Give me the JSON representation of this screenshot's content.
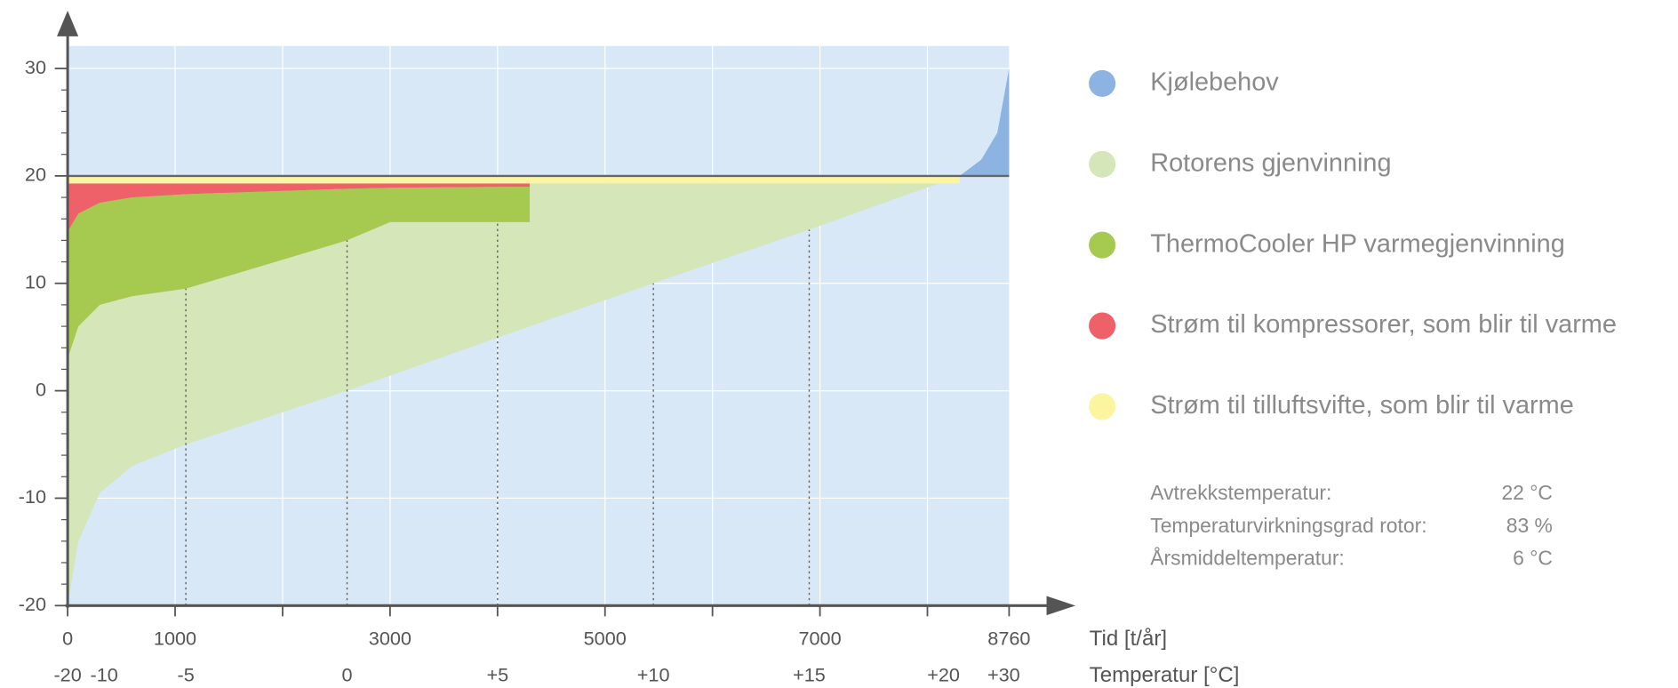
{
  "chart_data": {
    "type": "area",
    "xlim": [
      0,
      8760
    ],
    "ylim": [
      -20,
      30
    ],
    "xticks": [
      0,
      1000,
      3000,
      5000,
      7000,
      8760
    ],
    "xminor": [
      2000,
      4000,
      6000,
      8000
    ],
    "yticks": [
      -20,
      -10,
      0,
      10,
      20,
      30
    ],
    "yminor": [
      -18,
      -16,
      -14,
      -12,
      -8,
      -6,
      -4,
      -2,
      2,
      4,
      6,
      8,
      12,
      14,
      16,
      18,
      22,
      24,
      26,
      28
    ],
    "grid": true,
    "reference_line": 20,
    "xlabel": "Tid [t/år]",
    "x2label": "Temperatur [°C]",
    "x2ticks": [
      {
        "value": 0,
        "label": "-20"
      },
      {
        "value": 340,
        "label": "-10"
      },
      {
        "value": 1100,
        "label": "-5"
      },
      {
        "value": 2600,
        "label": "0"
      },
      {
        "value": 4000,
        "label": "+5"
      },
      {
        "value": 5450,
        "label": "+10"
      },
      {
        "value": 6900,
        "label": "+15"
      },
      {
        "value": 8150,
        "label": "+20"
      },
      {
        "value": 8710,
        "label": "+30"
      }
    ],
    "guides": {
      "x": [
        1100,
        2600,
        4000,
        5450,
        6900
      ],
      "y": [
        9.5,
        14,
        15.7,
        10,
        15
      ]
    },
    "series": [
      {
        "name": "Kjølebehov",
        "color": "#8db3e2",
        "x": [
          8300,
          8500,
          8650,
          8760
        ],
        "lower": [
          20,
          20,
          20,
          20
        ],
        "upper": [
          20,
          21.5,
          24,
          30
        ]
      },
      {
        "name": "Rotorens gjenvinning",
        "color": "#d5e6b8",
        "x": [
          0,
          100,
          300,
          600,
          1100,
          2600,
          3000,
          4300,
          4300,
          5450,
          6900,
          8300
        ],
        "lower": [
          -20,
          -14,
          -9.5,
          -7,
          -5,
          0,
          1.4,
          6,
          6,
          10,
          15,
          20
        ],
        "upper": [
          3,
          6,
          8,
          8.8,
          9.5,
          14,
          15.7,
          15.7,
          19.3,
          19.3,
          19.3,
          20
        ]
      },
      {
        "name": "ThermoCooler HP varmegjenvinning",
        "color": "#a6c94f",
        "x": [
          0,
          100,
          300,
          600,
          1100,
          2600,
          3000,
          4300
        ],
        "lower": [
          3,
          6,
          8,
          8.8,
          9.5,
          14,
          15.7,
          15.7
        ],
        "upper": [
          14.8,
          16.5,
          17.5,
          18,
          18.3,
          18.8,
          18.9,
          19
        ]
      },
      {
        "name": "Strøm til kompressorer, som blir til varme",
        "color": "#ef6169",
        "x": [
          0,
          100,
          300,
          600,
          1100,
          2600,
          3000,
          4300
        ],
        "lower": [
          14.8,
          16.5,
          17.5,
          18,
          18.3,
          18.8,
          18.9,
          19
        ],
        "upper": [
          19.3,
          19.3,
          19.3,
          19.3,
          19.3,
          19.3,
          19.3,
          19.3
        ]
      },
      {
        "name": "Strøm til tilluftsvifte, som blir til varme",
        "color": "#fbf5a0",
        "x": [
          0,
          8300
        ],
        "lower": [
          19.3,
          19.3
        ],
        "upper": [
          20,
          20
        ]
      }
    ],
    "info": [
      {
        "label": "Avtrekkstemperatur:",
        "value": "22 °C"
      },
      {
        "label": "Temperaturvirkningsgrad rotor:",
        "value": "83 %"
      },
      {
        "label": "Årsmiddeltemperatur:",
        "value": "6 °C"
      }
    ]
  }
}
